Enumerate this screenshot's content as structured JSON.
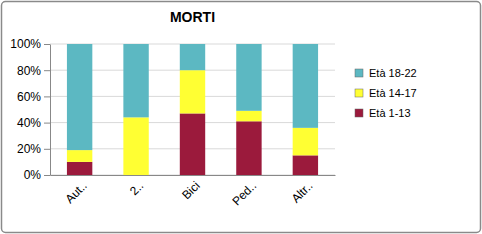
{
  "chart_data": {
    "type": "bar",
    "title": "MORTI",
    "stacked": true,
    "grid": true,
    "legend": "right",
    "categories": [
      "Aut..",
      "2..",
      "Bici",
      "Ped..",
      "Altr.."
    ],
    "series": [
      {
        "name": "Età 1-13",
        "color": "#9b1a3c",
        "values": [
          10,
          0,
          47,
          41,
          15
        ]
      },
      {
        "name": "Età 14-17",
        "color": "#ffff33",
        "values": [
          9,
          44,
          33,
          8,
          21
        ]
      },
      {
        "name": "Età 18-22",
        "color": "#5cb8c2",
        "values": [
          81,
          56,
          20,
          51,
          64
        ]
      }
    ],
    "ylim": [
      0,
      100
    ],
    "yticks": [
      {
        "value": 0,
        "label": "0%"
      },
      {
        "value": 20,
        "label": "20%"
      },
      {
        "value": 40,
        "label": "40%"
      },
      {
        "value": 60,
        "label": "60%"
      },
      {
        "value": 80,
        "label": "80%"
      },
      {
        "value": 100,
        "label": "100%"
      }
    ]
  }
}
